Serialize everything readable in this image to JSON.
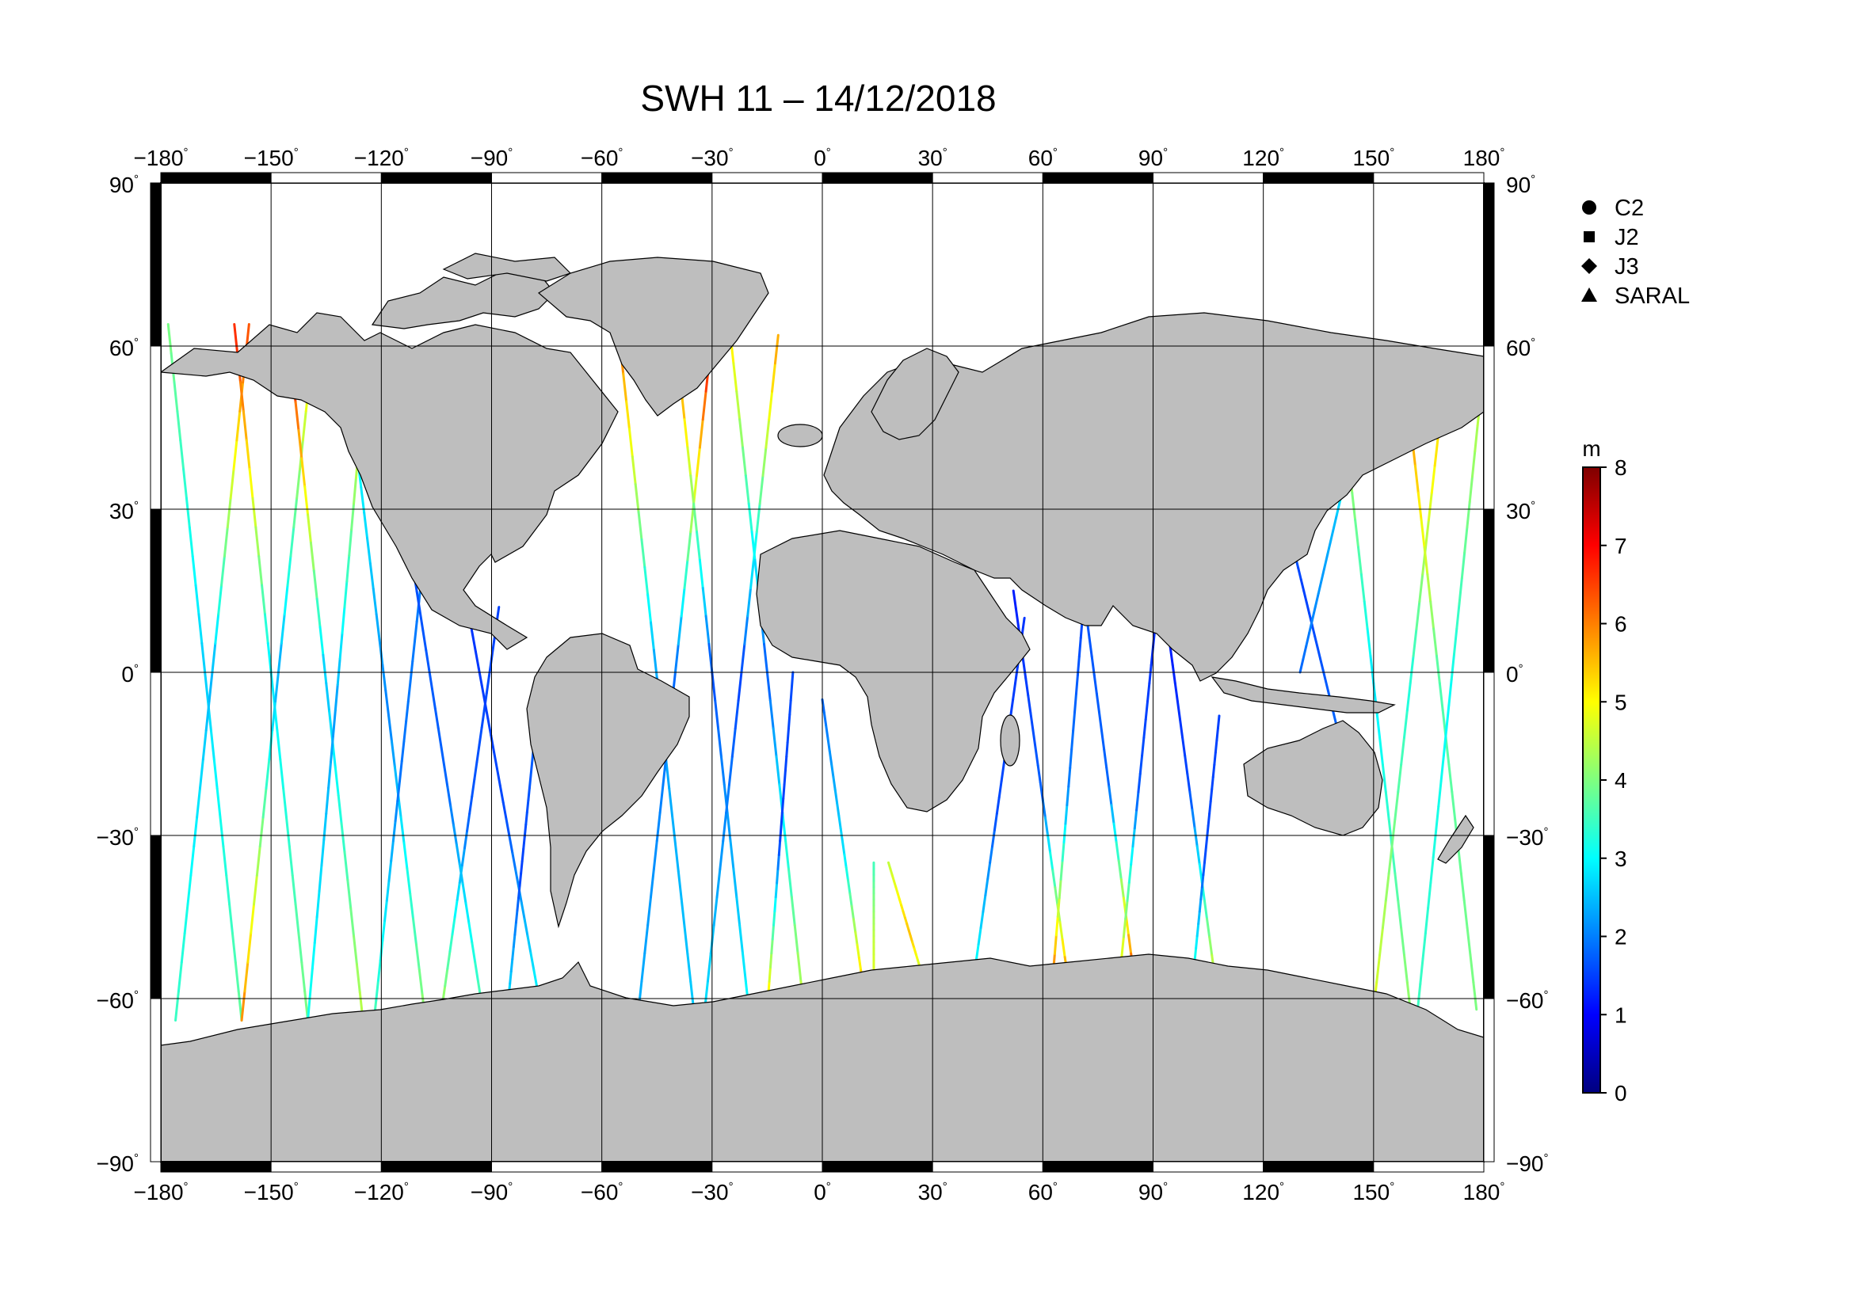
{
  "chart_data": {
    "type": "map",
    "title": "SWH 11 – 14/12/2018",
    "projection": "equirectangular",
    "lon_range": [
      -180,
      180
    ],
    "lat_range": [
      -90,
      90
    ],
    "grid": true,
    "lon_ticks": [
      {
        "value": -180,
        "label": "−180"
      },
      {
        "value": -150,
        "label": "−150"
      },
      {
        "value": -120,
        "label": "−120"
      },
      {
        "value": -90,
        "label": "−90"
      },
      {
        "value": -60,
        "label": "−60"
      },
      {
        "value": -30,
        "label": "−30"
      },
      {
        "value": 0,
        "label": "0"
      },
      {
        "value": 30,
        "label": "30"
      },
      {
        "value": 60,
        "label": "60"
      },
      {
        "value": 90,
        "label": "90"
      },
      {
        "value": 120,
        "label": "120"
      },
      {
        "value": 150,
        "label": "150"
      },
      {
        "value": 180,
        "label": "180"
      }
    ],
    "lat_ticks": [
      {
        "value": 90,
        "label": "90"
      },
      {
        "value": 60,
        "label": "60"
      },
      {
        "value": 30,
        "label": "30"
      },
      {
        "value": 0,
        "label": "0"
      },
      {
        "value": -30,
        "label": "−30"
      },
      {
        "value": -60,
        "label": "−60"
      },
      {
        "value": -90,
        "label": "−90"
      }
    ],
    "degree_symbol": "°",
    "legend": {
      "placement": "top-right",
      "items": [
        {
          "label": "C2",
          "marker": "circle"
        },
        {
          "label": "J2",
          "marker": "square"
        },
        {
          "label": "J3",
          "marker": "diamond"
        },
        {
          "label": "SARAL",
          "marker": "triangle"
        }
      ]
    },
    "colorbar": {
      "unit": "m",
      "range": [
        0,
        8
      ],
      "ticks": [
        {
          "value": 0,
          "label": "0"
        },
        {
          "value": 1,
          "label": "1"
        },
        {
          "value": 2,
          "label": "2"
        },
        {
          "value": 3,
          "label": "3"
        },
        {
          "value": 4,
          "label": "4"
        },
        {
          "value": 5,
          "label": "5"
        },
        {
          "value": 6,
          "label": "6"
        },
        {
          "value": 7,
          "label": "7"
        },
        {
          "value": 8,
          "label": "8"
        }
      ],
      "colormap": [
        "#00007f",
        "#0000ff",
        "#007fff",
        "#00ffff",
        "#7fff7f",
        "#ffff00",
        "#ff7f00",
        "#ff0000",
        "#7f0000"
      ]
    },
    "land_color": "#bebebe",
    "tracks": [
      {
        "pass": "descending",
        "lon_start": -178,
        "lat_start": 64,
        "lon_end": -158,
        "lat_end": -64,
        "swh_north": 4.0,
        "swh_mid": 2.6,
        "swh_south": 3.8
      },
      {
        "pass": "ascending",
        "lon_start": -176,
        "lat_start": -64,
        "lon_end": -156,
        "lat_end": 64,
        "swh_north": 6.5,
        "swh_mid": 2.4,
        "swh_south": 3.5
      },
      {
        "pass": "descending",
        "lon_start": -160,
        "lat_start": 64,
        "lon_end": -140,
        "lat_end": -64,
        "swh_north": 6.8,
        "swh_mid": 2.8,
        "swh_south": 4.0
      },
      {
        "pass": "ascending",
        "lon_start": -158,
        "lat_start": -64,
        "lon_end": -138,
        "lat_end": 64,
        "swh_north": 5.5,
        "swh_mid": 2.3,
        "swh_south": 6.0
      },
      {
        "pass": "descending",
        "lon_start": -145,
        "lat_start": 60,
        "lon_end": -125,
        "lat_end": -64,
        "swh_north": 7.0,
        "swh_mid": 2.5,
        "swh_south": 4.5
      },
      {
        "pass": "ascending",
        "lon_start": -140,
        "lat_start": -64,
        "lon_end": -125,
        "lat_end": 50,
        "swh_north": 5.0,
        "swh_mid": 2.2,
        "swh_south": 3.2
      },
      {
        "pass": "descending",
        "lon_start": -128,
        "lat_start": 48,
        "lon_end": -108,
        "lat_end": -64,
        "swh_north": 3.2,
        "swh_mid": 2.0,
        "swh_south": 4.2
      },
      {
        "pass": "ascending",
        "lon_start": -122,
        "lat_start": -64,
        "lon_end": -108,
        "lat_end": 24,
        "swh_north": 2.0,
        "swh_mid": 1.9,
        "swh_south": 3.6
      },
      {
        "pass": "descending",
        "lon_start": -112,
        "lat_start": 22,
        "lon_end": -92,
        "lat_end": -64,
        "swh_north": 1.6,
        "swh_mid": 1.8,
        "swh_south": 3.8
      },
      {
        "pass": "ascending",
        "lon_start": -104,
        "lat_start": -64,
        "lon_end": -88,
        "lat_end": 12,
        "swh_north": 1.5,
        "swh_mid": 1.7,
        "swh_south": 4.5
      },
      {
        "pass": "descending",
        "lon_start": -96,
        "lat_start": 10,
        "lon_end": -76,
        "lat_end": -64,
        "swh_north": 1.4,
        "swh_mid": 1.6,
        "swh_south": 3.2
      },
      {
        "pass": "ascending",
        "lon_start": -86,
        "lat_start": -64,
        "lon_end": -78,
        "lat_end": -10,
        "swh_north": 1.8,
        "swh_mid": 1.5,
        "swh_south": 3.0
      },
      {
        "pass": "descending",
        "lon_start": -55,
        "lat_start": 60,
        "lon_end": -35,
        "lat_end": -62,
        "swh_north": 6.0,
        "swh_mid": 2.2,
        "swh_south": 2.6
      },
      {
        "pass": "ascending",
        "lon_start": -50,
        "lat_start": -62,
        "lon_end": -30,
        "lat_end": 62,
        "swh_north": 7.2,
        "swh_mid": 1.8,
        "swh_south": 2.4
      },
      {
        "pass": "descending",
        "lon_start": -40,
        "lat_start": 62,
        "lon_end": -20,
        "lat_end": -62,
        "swh_north": 6.5,
        "swh_mid": 1.6,
        "swh_south": 3.0
      },
      {
        "pass": "ascending",
        "lon_start": -32,
        "lat_start": -62,
        "lon_end": -12,
        "lat_end": 62,
        "swh_north": 5.8,
        "swh_mid": 1.5,
        "swh_south": 2.8
      },
      {
        "pass": "descending",
        "lon_start": -25,
        "lat_start": 62,
        "lon_end": -5,
        "lat_end": -62,
        "swh_north": 5.2,
        "swh_mid": 1.7,
        "swh_south": 4.6
      },
      {
        "pass": "ascending",
        "lon_start": -15,
        "lat_start": -62,
        "lon_end": -8,
        "lat_end": 0,
        "swh_north": 1.6,
        "swh_mid": 1.5,
        "swh_south": 5.5
      },
      {
        "pass": "descending",
        "lon_start": 0,
        "lat_start": -5,
        "lon_end": 12,
        "lat_end": -62,
        "swh_north": 1.8,
        "swh_mid": 2.8,
        "swh_south": 6.0
      },
      {
        "pass": "ascending",
        "lon_start": 14,
        "lat_start": -62,
        "lon_end": 14,
        "lat_end": -35,
        "swh_north": 3.5,
        "swh_mid": 4.5,
        "swh_south": 5.0
      },
      {
        "pass": "descending",
        "lon_start": 18,
        "lat_start": -35,
        "lon_end": 30,
        "lat_end": -62,
        "swh_north": 4.5,
        "swh_mid": 5.5,
        "swh_south": 3.5
      },
      {
        "pass": "ascending",
        "lon_start": 40,
        "lat_start": -62,
        "lon_end": 55,
        "lat_end": 10,
        "swh_north": 1.4,
        "swh_mid": 1.6,
        "swh_south": 3.5
      },
      {
        "pass": "descending",
        "lon_start": 52,
        "lat_start": 15,
        "lon_end": 68,
        "lat_end": -62,
        "swh_north": 1.2,
        "swh_mid": 1.8,
        "swh_south": 6.5
      },
      {
        "pass": "ascending",
        "lon_start": 62,
        "lat_start": -62,
        "lon_end": 72,
        "lat_end": 20,
        "swh_north": 1.4,
        "swh_mid": 2.0,
        "swh_south": 6.8
      },
      {
        "pass": "descending",
        "lon_start": 70,
        "lat_start": 20,
        "lon_end": 86,
        "lat_end": -62,
        "swh_north": 1.6,
        "swh_mid": 1.8,
        "swh_south": 7.2
      },
      {
        "pass": "ascending",
        "lon_start": 80,
        "lat_start": -62,
        "lon_end": 92,
        "lat_end": 18,
        "swh_north": 1.2,
        "swh_mid": 1.7,
        "swh_south": 6.0
      },
      {
        "pass": "descending",
        "lon_start": 92,
        "lat_start": 18,
        "lon_end": 108,
        "lat_end": -62,
        "swh_north": 1.0,
        "swh_mid": 1.6,
        "swh_south": 5.2
      },
      {
        "pass": "ascending",
        "lon_start": 100,
        "lat_start": -62,
        "lon_end": 108,
        "lat_end": -8,
        "swh_north": 1.5,
        "swh_mid": 1.6,
        "swh_south": 4.0
      },
      {
        "pass": "descending",
        "lon_start": 122,
        "lat_start": 40,
        "lon_end": 140,
        "lat_end": -10,
        "swh_north": 2.0,
        "swh_mid": 1.5,
        "swh_south": 1.8
      },
      {
        "pass": "ascending",
        "lon_start": 130,
        "lat_start": 0,
        "lon_end": 150,
        "lat_end": 58,
        "swh_north": 5.6,
        "swh_mid": 2.5,
        "swh_south": 1.8
      },
      {
        "pass": "descending",
        "lon_start": 140,
        "lat_start": 58,
        "lon_end": 160,
        "lat_end": -62,
        "swh_north": 5.0,
        "swh_mid": 2.8,
        "swh_south": 4.2
      },
      {
        "pass": "ascending",
        "lon_start": 150,
        "lat_start": -62,
        "lon_end": 170,
        "lat_end": 58,
        "swh_north": 6.0,
        "swh_mid": 3.2,
        "swh_south": 4.8
      },
      {
        "pass": "descending",
        "lon_start": 158,
        "lat_start": 58,
        "lon_end": 178,
        "lat_end": -62,
        "swh_north": 6.4,
        "swh_mid": 3.6,
        "swh_south": 4.0
      },
      {
        "pass": "ascending",
        "lon_start": 162,
        "lat_start": -62,
        "lon_end": 179,
        "lat_end": 50,
        "swh_north": 4.5,
        "swh_mid": 3.0,
        "swh_south": 3.5
      }
    ]
  }
}
